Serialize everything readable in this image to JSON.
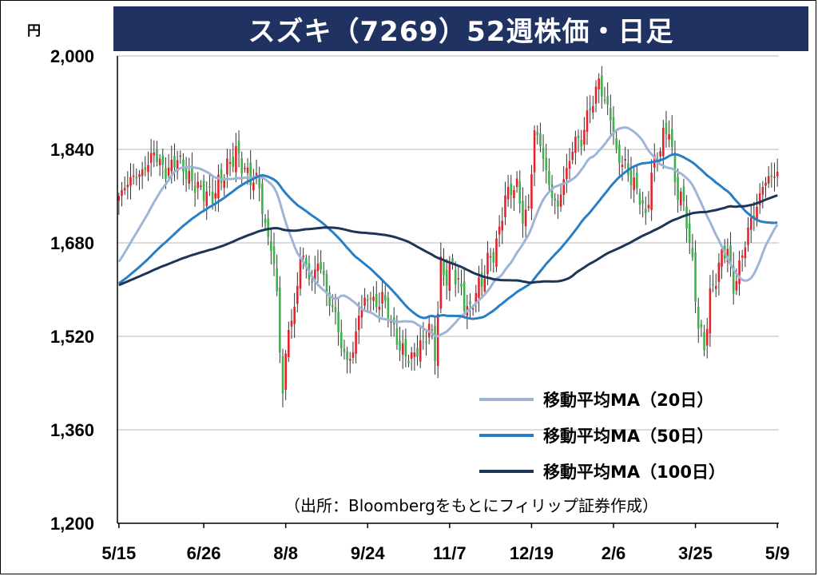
{
  "title": "スズキ（7269）52週株価・日足",
  "unit": "円",
  "chart_data": {
    "type": "candlestick",
    "title": "スズキ（7269）52週株価・日足",
    "ylabel": "円",
    "ylim": [
      1200,
      2000
    ],
    "yticks": [
      1200,
      1360,
      1520,
      1680,
      1840,
      2000
    ],
    "ytick_labels": [
      "1,200",
      "1,360",
      "1,520",
      "1,680",
      "1,840",
      "2,000"
    ],
    "xtick_labels": [
      "5/15",
      "6/26",
      "8/8",
      "9/24",
      "11/7",
      "12/19",
      "2/6",
      "3/25",
      "5/9"
    ],
    "xtick_index": [
      0,
      29,
      57,
      85,
      113,
      141,
      169,
      197,
      225
    ],
    "n_days": 226,
    "grid": true,
    "legend_position": "bottom-right",
    "colors": {
      "up": "#e8202a",
      "down": "#3cb24a",
      "ma20": "#9fb5d6",
      "ma50": "#2a7fc4",
      "ma100": "#1d3557",
      "grid": "#d0d0d0"
    },
    "close_anchors": [
      [
        0,
        1760
      ],
      [
        4,
        1790
      ],
      [
        8,
        1800
      ],
      [
        12,
        1835
      ],
      [
        16,
        1800
      ],
      [
        20,
        1825
      ],
      [
        24,
        1790
      ],
      [
        28,
        1770
      ],
      [
        32,
        1760
      ],
      [
        36,
        1800
      ],
      [
        40,
        1835
      ],
      [
        44,
        1795
      ],
      [
        48,
        1780
      ],
      [
        50,
        1700
      ],
      [
        52,
        1680
      ],
      [
        54,
        1590
      ],
      [
        56,
        1420
      ],
      [
        58,
        1540
      ],
      [
        60,
        1560
      ],
      [
        62,
        1660
      ],
      [
        64,
        1640
      ],
      [
        66,
        1610
      ],
      [
        68,
        1650
      ],
      [
        70,
        1620
      ],
      [
        72,
        1575
      ],
      [
        74,
        1560
      ],
      [
        76,
        1500
      ],
      [
        78,
        1480
      ],
      [
        80,
        1490
      ],
      [
        82,
        1560
      ],
      [
        84,
        1580
      ],
      [
        86,
        1590
      ],
      [
        88,
        1570
      ],
      [
        90,
        1590
      ],
      [
        92,
        1560
      ],
      [
        94,
        1530
      ],
      [
        96,
        1500
      ],
      [
        98,
        1490
      ],
      [
        100,
        1480
      ],
      [
        102,
        1500
      ],
      [
        104,
        1510
      ],
      [
        106,
        1540
      ],
      [
        108,
        1490
      ],
      [
        110,
        1640
      ],
      [
        112,
        1620
      ],
      [
        114,
        1640
      ],
      [
        116,
        1610
      ],
      [
        118,
        1580
      ],
      [
        120,
        1560
      ],
      [
        122,
        1600
      ],
      [
        124,
        1610
      ],
      [
        126,
        1650
      ],
      [
        128,
        1660
      ],
      [
        130,
        1700
      ],
      [
        132,
        1760
      ],
      [
        134,
        1770
      ],
      [
        136,
        1780
      ],
      [
        138,
        1720
      ],
      [
        140,
        1740
      ],
      [
        142,
        1870
      ],
      [
        144,
        1850
      ],
      [
        146,
        1800
      ],
      [
        148,
        1760
      ],
      [
        150,
        1740
      ],
      [
        152,
        1790
      ],
      [
        154,
        1820
      ],
      [
        156,
        1860
      ],
      [
        158,
        1850
      ],
      [
        160,
        1900
      ],
      [
        162,
        1920
      ],
      [
        164,
        1960
      ],
      [
        166,
        1920
      ],
      [
        168,
        1900
      ],
      [
        170,
        1830
      ],
      [
        172,
        1820
      ],
      [
        174,
        1800
      ],
      [
        176,
        1780
      ],
      [
        178,
        1760
      ],
      [
        180,
        1720
      ],
      [
        182,
        1800
      ],
      [
        184,
        1830
      ],
      [
        186,
        1860
      ],
      [
        188,
        1880
      ],
      [
        190,
        1780
      ],
      [
        192,
        1760
      ],
      [
        194,
        1720
      ],
      [
        196,
        1640
      ],
      [
        198,
        1540
      ],
      [
        200,
        1500
      ],
      [
        202,
        1590
      ],
      [
        204,
        1620
      ],
      [
        206,
        1660
      ],
      [
        208,
        1670
      ],
      [
        210,
        1600
      ],
      [
        212,
        1640
      ],
      [
        214,
        1680
      ],
      [
        216,
        1720
      ],
      [
        218,
        1740
      ],
      [
        220,
        1780
      ],
      [
        222,
        1790
      ],
      [
        225,
        1800
      ]
    ],
    "series": [
      {
        "name": "移動平均MA（20日）",
        "window": 20
      },
      {
        "name": "移動平均MA（50日）",
        "window": 50
      },
      {
        "name": "移動平均MA（100日）",
        "window": 100
      }
    ]
  },
  "source": "（出所：Bloombergをもとにフィリップ証券作成）"
}
